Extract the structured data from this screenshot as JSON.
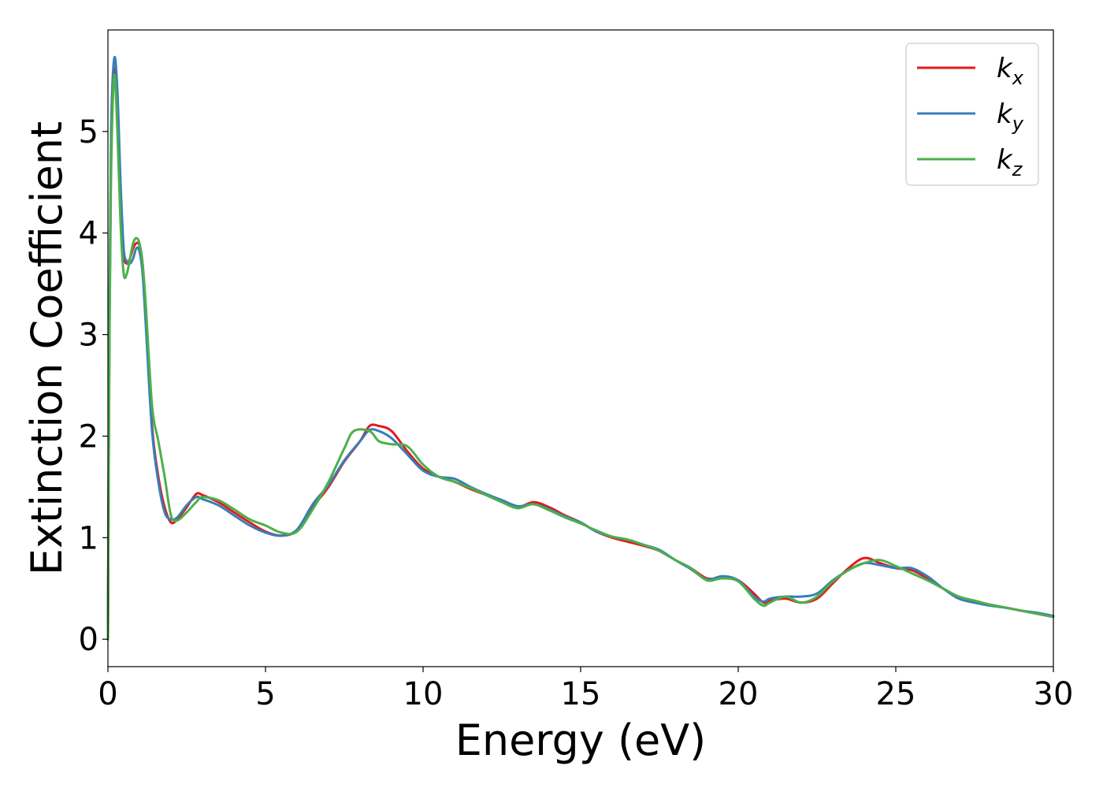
{
  "chart_data": {
    "type": "line",
    "title": "",
    "xlabel": "Energy (eV)",
    "ylabel": "Extinction Coefficient",
    "xlim": [
      0,
      30
    ],
    "ylim": [
      -0.27,
      6.0
    ],
    "xticks": [
      0,
      5,
      10,
      15,
      20,
      25,
      30
    ],
    "xtick_labels": [
      "0",
      "5",
      "10",
      "15",
      "20",
      "25",
      "30"
    ],
    "yticks": [
      0,
      1,
      2,
      3,
      4,
      5
    ],
    "ytick_labels": [
      "0",
      "1",
      "2",
      "3",
      "4",
      "5"
    ],
    "grid": false,
    "legend_position": "top-right",
    "series": [
      {
        "name": "k",
        "subscript": "x",
        "color": "#e31a1c",
        "x": [
          0,
          0.05,
          0.1,
          0.2,
          0.3,
          0.4,
          0.5,
          0.6,
          0.7,
          0.8,
          0.9,
          1.0,
          1.1,
          1.2,
          1.4,
          1.6,
          1.8,
          2.0,
          2.2,
          2.5,
          2.8,
          3.0,
          3.5,
          4.0,
          4.5,
          5.0,
          5.5,
          6.0,
          6.5,
          7.0,
          7.5,
          8.0,
          8.3,
          8.6,
          9.0,
          9.5,
          10.0,
          10.5,
          11.0,
          11.5,
          12.0,
          12.5,
          13.0,
          13.5,
          14.0,
          14.5,
          15.0,
          15.5,
          16.0,
          16.5,
          17.0,
          17.5,
          18.0,
          18.5,
          19.0,
          19.5,
          20.0,
          20.5,
          20.8,
          21.0,
          21.5,
          22.0,
          22.5,
          23.0,
          23.5,
          24.0,
          24.5,
          25.0,
          25.5,
          26.0,
          26.5,
          27.0,
          27.5,
          28.0,
          28.5,
          29.0,
          29.5,
          30.0
        ],
        "y": [
          0.0,
          3.2,
          4.8,
          5.6,
          5.3,
          4.4,
          3.8,
          3.7,
          3.75,
          3.85,
          3.9,
          3.88,
          3.7,
          3.2,
          2.1,
          1.6,
          1.3,
          1.15,
          1.18,
          1.3,
          1.43,
          1.42,
          1.35,
          1.25,
          1.15,
          1.06,
          1.02,
          1.07,
          1.3,
          1.5,
          1.75,
          1.95,
          2.1,
          2.1,
          2.05,
          1.85,
          1.68,
          1.6,
          1.55,
          1.48,
          1.42,
          1.36,
          1.3,
          1.35,
          1.3,
          1.22,
          1.15,
          1.06,
          1.0,
          0.96,
          0.92,
          0.87,
          0.78,
          0.7,
          0.6,
          0.6,
          0.58,
          0.45,
          0.36,
          0.38,
          0.4,
          0.36,
          0.4,
          0.55,
          0.7,
          0.8,
          0.75,
          0.7,
          0.68,
          0.6,
          0.5,
          0.4,
          0.37,
          0.34,
          0.31,
          0.28,
          0.25,
          0.22
        ]
      },
      {
        "name": "k",
        "subscript": "y",
        "color": "#377eb8",
        "x": [
          0,
          0.05,
          0.1,
          0.2,
          0.3,
          0.4,
          0.5,
          0.6,
          0.7,
          0.8,
          0.9,
          1.0,
          1.1,
          1.2,
          1.4,
          1.6,
          1.8,
          2.0,
          2.2,
          2.5,
          2.8,
          3.0,
          3.5,
          4.0,
          4.5,
          5.0,
          5.5,
          6.0,
          6.5,
          7.0,
          7.5,
          8.0,
          8.3,
          8.6,
          9.0,
          9.5,
          10.0,
          10.5,
          11.0,
          11.5,
          12.0,
          12.5,
          13.0,
          13.5,
          14.0,
          14.5,
          15.0,
          15.5,
          16.0,
          16.5,
          17.0,
          17.5,
          18.0,
          18.5,
          19.0,
          19.5,
          20.0,
          20.5,
          20.8,
          21.0,
          21.5,
          22.0,
          22.5,
          23.0,
          23.5,
          24.0,
          24.5,
          25.0,
          25.5,
          26.0,
          26.5,
          27.0,
          27.5,
          28.0,
          28.5,
          29.0,
          29.5,
          30.0
        ],
        "y": [
          0.0,
          3.3,
          5.0,
          5.72,
          5.4,
          4.5,
          3.85,
          3.72,
          3.7,
          3.75,
          3.85,
          3.82,
          3.6,
          3.1,
          2.05,
          1.55,
          1.25,
          1.18,
          1.2,
          1.32,
          1.4,
          1.38,
          1.32,
          1.22,
          1.12,
          1.05,
          1.02,
          1.08,
          1.33,
          1.52,
          1.76,
          1.95,
          2.06,
          2.05,
          1.98,
          1.82,
          1.66,
          1.6,
          1.58,
          1.5,
          1.43,
          1.37,
          1.31,
          1.33,
          1.28,
          1.21,
          1.15,
          1.06,
          1.01,
          0.98,
          0.93,
          0.88,
          0.78,
          0.69,
          0.59,
          0.62,
          0.58,
          0.42,
          0.37,
          0.4,
          0.42,
          0.42,
          0.45,
          0.58,
          0.68,
          0.75,
          0.73,
          0.7,
          0.7,
          0.62,
          0.5,
          0.4,
          0.36,
          0.33,
          0.31,
          0.28,
          0.26,
          0.23
        ]
      },
      {
        "name": "k",
        "subscript": "z",
        "color": "#4daf4a",
        "x": [
          0,
          0.05,
          0.1,
          0.2,
          0.3,
          0.4,
          0.5,
          0.6,
          0.7,
          0.8,
          0.9,
          1.0,
          1.1,
          1.2,
          1.4,
          1.6,
          1.8,
          2.0,
          2.2,
          2.5,
          2.8,
          3.0,
          3.5,
          4.0,
          4.5,
          5.0,
          5.5,
          6.0,
          6.5,
          7.0,
          7.5,
          7.8,
          8.3,
          8.6,
          9.0,
          9.5,
          10.0,
          10.5,
          11.0,
          11.5,
          12.0,
          12.5,
          13.0,
          13.5,
          14.0,
          14.5,
          15.0,
          15.5,
          16.0,
          16.5,
          17.0,
          17.5,
          18.0,
          18.5,
          19.0,
          19.5,
          20.0,
          20.5,
          20.8,
          21.0,
          21.5,
          22.0,
          22.5,
          23.0,
          23.5,
          24.0,
          24.5,
          25.0,
          25.5,
          26.0,
          26.5,
          27.0,
          27.5,
          28.0,
          28.5,
          29.0,
          29.5,
          30.0
        ],
        "y": [
          0.0,
          3.0,
          4.6,
          5.55,
          5.0,
          4.1,
          3.6,
          3.6,
          3.75,
          3.9,
          3.95,
          3.9,
          3.7,
          3.3,
          2.3,
          1.95,
          1.6,
          1.22,
          1.17,
          1.25,
          1.35,
          1.4,
          1.37,
          1.28,
          1.18,
          1.12,
          1.05,
          1.06,
          1.28,
          1.55,
          1.88,
          2.05,
          2.05,
          1.95,
          1.92,
          1.9,
          1.72,
          1.6,
          1.55,
          1.49,
          1.42,
          1.35,
          1.29,
          1.33,
          1.27,
          1.2,
          1.14,
          1.07,
          1.01,
          0.98,
          0.93,
          0.87,
          0.78,
          0.7,
          0.58,
          0.6,
          0.57,
          0.4,
          0.33,
          0.36,
          0.42,
          0.36,
          0.42,
          0.57,
          0.68,
          0.75,
          0.78,
          0.72,
          0.65,
          0.58,
          0.5,
          0.42,
          0.38,
          0.34,
          0.31,
          0.28,
          0.25,
          0.22
        ]
      }
    ]
  }
}
